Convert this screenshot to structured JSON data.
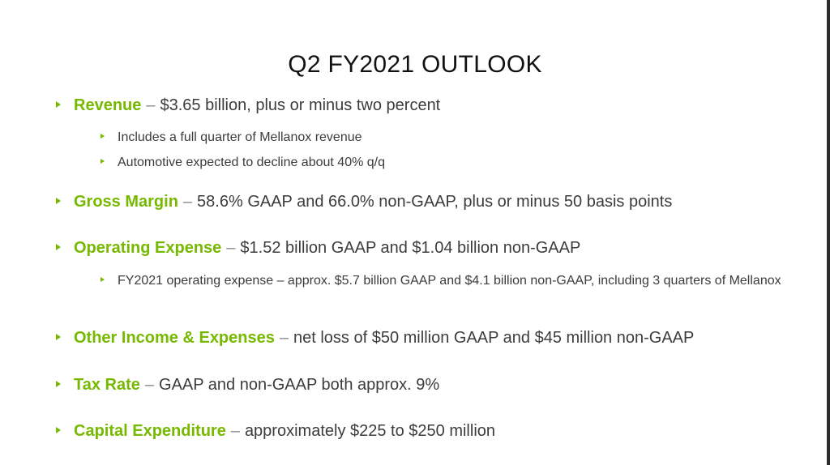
{
  "slide": {
    "title": "Q2 FY2021 OUTLOOK",
    "accent_color": "#76b900",
    "bullet_icon": "triangle-bullet",
    "items": [
      {
        "label": "Revenue",
        "dash": "–",
        "text": "$3.65 billion, plus or minus two percent",
        "subs": [
          "Includes a full quarter of Mellanox revenue",
          "Automotive expected to decline about 40% q/q"
        ]
      },
      {
        "label": "Gross Margin",
        "dash": "–",
        "text": "58.6% GAAP and 66.0% non-GAAP, plus or minus 50 basis points",
        "subs": []
      },
      {
        "label": "Operating Expense",
        "dash": "–",
        "text": "$1.52 billion GAAP and $1.04 billion non-GAAP",
        "subs": [
          "FY2021 operating expense – approx. $5.7 billion GAAP and $4.1 billion non-GAAP, including 3 quarters of Mellanox"
        ]
      },
      {
        "label": "Other Income & Expenses",
        "dash": "–",
        "text": "net loss of $50 million GAAP and $45 million non-GAAP",
        "subs": []
      },
      {
        "label": "Tax Rate",
        "dash": "–",
        "text": "GAAP and non-GAAP both approx. 9%",
        "subs": []
      },
      {
        "label": "Capital Expenditure",
        "dash": "–",
        "text": "approximately $225 to $250 million",
        "subs": []
      }
    ]
  }
}
